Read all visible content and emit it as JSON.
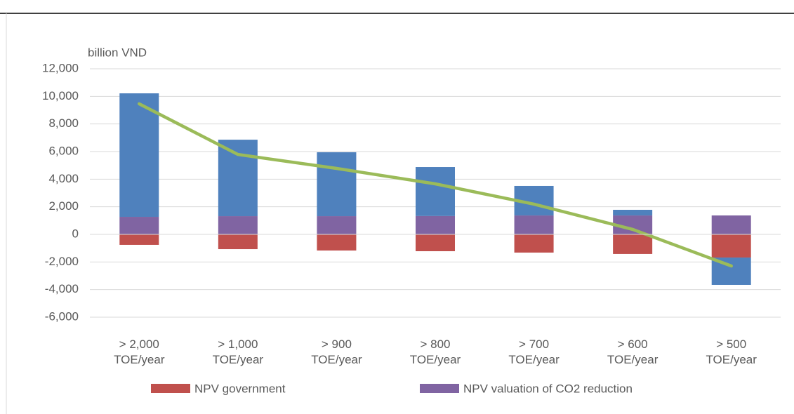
{
  "chart_data": {
    "type": "bar",
    "stacked": true,
    "y_label": "billion VND",
    "categories": [
      "> 2,000 TOE/year",
      "> 1,000 TOE/year",
      "> 900 TOE/year",
      "> 800 TOE/year",
      "> 700 TOE/year",
      "> 600 TOE/year",
      "> 500 TOE/year"
    ],
    "series": [
      {
        "name": "NPV government",
        "color": "#c0504d",
        "values": [
          -760,
          -1070,
          -1170,
          -1220,
          -1320,
          -1420,
          -1680
        ]
      },
      {
        "name": "NPV valuation of CO2 reduction",
        "color": "#8064a2",
        "values": [
          1270,
          1320,
          1320,
          1330,
          1370,
          1370,
          1370
        ]
      },
      {
        "color": "#4f81bd",
        "values": [
          8950,
          5540,
          4630,
          3550,
          2140,
          410,
          -1980
        ]
      },
      {
        "type": "line",
        "color": "#9bbb59",
        "values": [
          9460,
          5790,
          4780,
          3660,
          2190,
          360,
          -2290
        ]
      }
    ],
    "ylim": [
      -6000,
      12000
    ],
    "yticks": [
      {
        "value": -6000,
        "label": "-6,000"
      },
      {
        "value": -4000,
        "label": "-4,000"
      },
      {
        "value": -2000,
        "label": "-2,000"
      },
      0,
      {
        "value": 2000,
        "label": "2,000"
      },
      {
        "value": 4000,
        "label": "4,000"
      },
      {
        "value": 6000,
        "label": "6,000"
      },
      {
        "value": 8000,
        "label": "8,000"
      },
      {
        "value": 10000,
        "label": "10,000"
      },
      {
        "value": 12000,
        "label": "12,000"
      }
    ],
    "grid": true
  }
}
